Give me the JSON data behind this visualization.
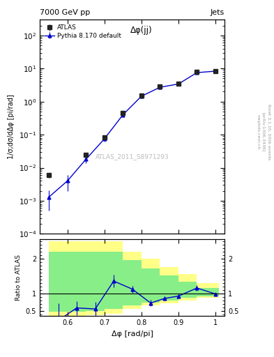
{
  "title_left": "7000 GeV pp",
  "title_right": "Jets",
  "annotation": "Δφ(jj)",
  "watermark": "ATLAS_2011_S8971293",
  "ylabel_main": "1/σ;dσ/dΔφ [pi/rad]",
  "ylabel_ratio": "Ratio to ATLAS",
  "xlabel": "Δφ [rad/pi]",
  "rivet_label": "Rivet 3.1.10, 500k events",
  "arxiv_label": "[arXiv:1306.3436]",
  "mcplots_label": "mcplots.cern.ch",
  "atlas_x": [
    0.55,
    0.65,
    0.7,
    0.75,
    0.8,
    0.85,
    0.9,
    0.95,
    1.0
  ],
  "atlas_y": [
    0.006,
    0.024,
    0.082,
    0.45,
    1.5,
    2.8,
    3.5,
    8.0,
    8.5
  ],
  "atlas_yerr": [
    0.001,
    0.003,
    0.008,
    0.04,
    0.15,
    0.3,
    0.45,
    0.7,
    0.5
  ],
  "mc_x": [
    0.55,
    0.6,
    0.65,
    0.7,
    0.75,
    0.8,
    0.85,
    0.9,
    0.95,
    1.0
  ],
  "mc_y": [
    0.0013,
    0.004,
    0.018,
    0.075,
    0.4,
    1.45,
    2.7,
    3.4,
    7.5,
    8.3
  ],
  "mc_yerr": [
    0.0008,
    0.002,
    0.004,
    0.012,
    0.05,
    0.18,
    0.38,
    0.45,
    0.8,
    0.4
  ],
  "ratio_x": [
    0.575,
    0.625,
    0.675,
    0.725,
    0.775,
    0.825,
    0.862,
    0.9,
    0.95,
    1.0
  ],
  "ratio_y": [
    0.22,
    0.58,
    0.55,
    1.35,
    1.12,
    0.72,
    0.85,
    0.92,
    1.15,
    0.98
  ],
  "ratio_yerr_lo": [
    0.5,
    0.2,
    0.2,
    0.18,
    0.1,
    0.09,
    0.06,
    0.07,
    0.08,
    0.04
  ],
  "ratio_yerr_hi": [
    0.5,
    0.2,
    0.2,
    0.18,
    0.1,
    0.09,
    0.06,
    0.07,
    0.08,
    0.04
  ],
  "band_edges": [
    0.55,
    0.6,
    0.65,
    0.7,
    0.75,
    0.8,
    0.85,
    0.9,
    0.95,
    1.01
  ],
  "band_yellow_lo": [
    0.35,
    0.35,
    0.38,
    0.42,
    0.55,
    0.65,
    0.72,
    0.8,
    0.87
  ],
  "band_yellow_hi": [
    2.5,
    2.5,
    2.5,
    2.5,
    2.2,
    2.0,
    1.75,
    1.55,
    1.3
  ],
  "band_green_lo": [
    0.47,
    0.47,
    0.5,
    0.55,
    0.65,
    0.73,
    0.8,
    0.87,
    0.91
  ],
  "band_green_hi": [
    2.2,
    2.2,
    2.2,
    2.2,
    1.95,
    1.72,
    1.52,
    1.33,
    1.15
  ],
  "main_ylim_lo": 0.0001,
  "main_ylim_hi": 300.0,
  "ratio_ylim_lo": 0.35,
  "ratio_ylim_hi": 2.55,
  "xlim_lo": 0.525,
  "xlim_hi": 1.025,
  "color_atlas": "#222222",
  "color_mc": "#0000cc",
  "color_yellow": "#ffff88",
  "color_green": "#88ee88",
  "bg_color": "#ffffff"
}
